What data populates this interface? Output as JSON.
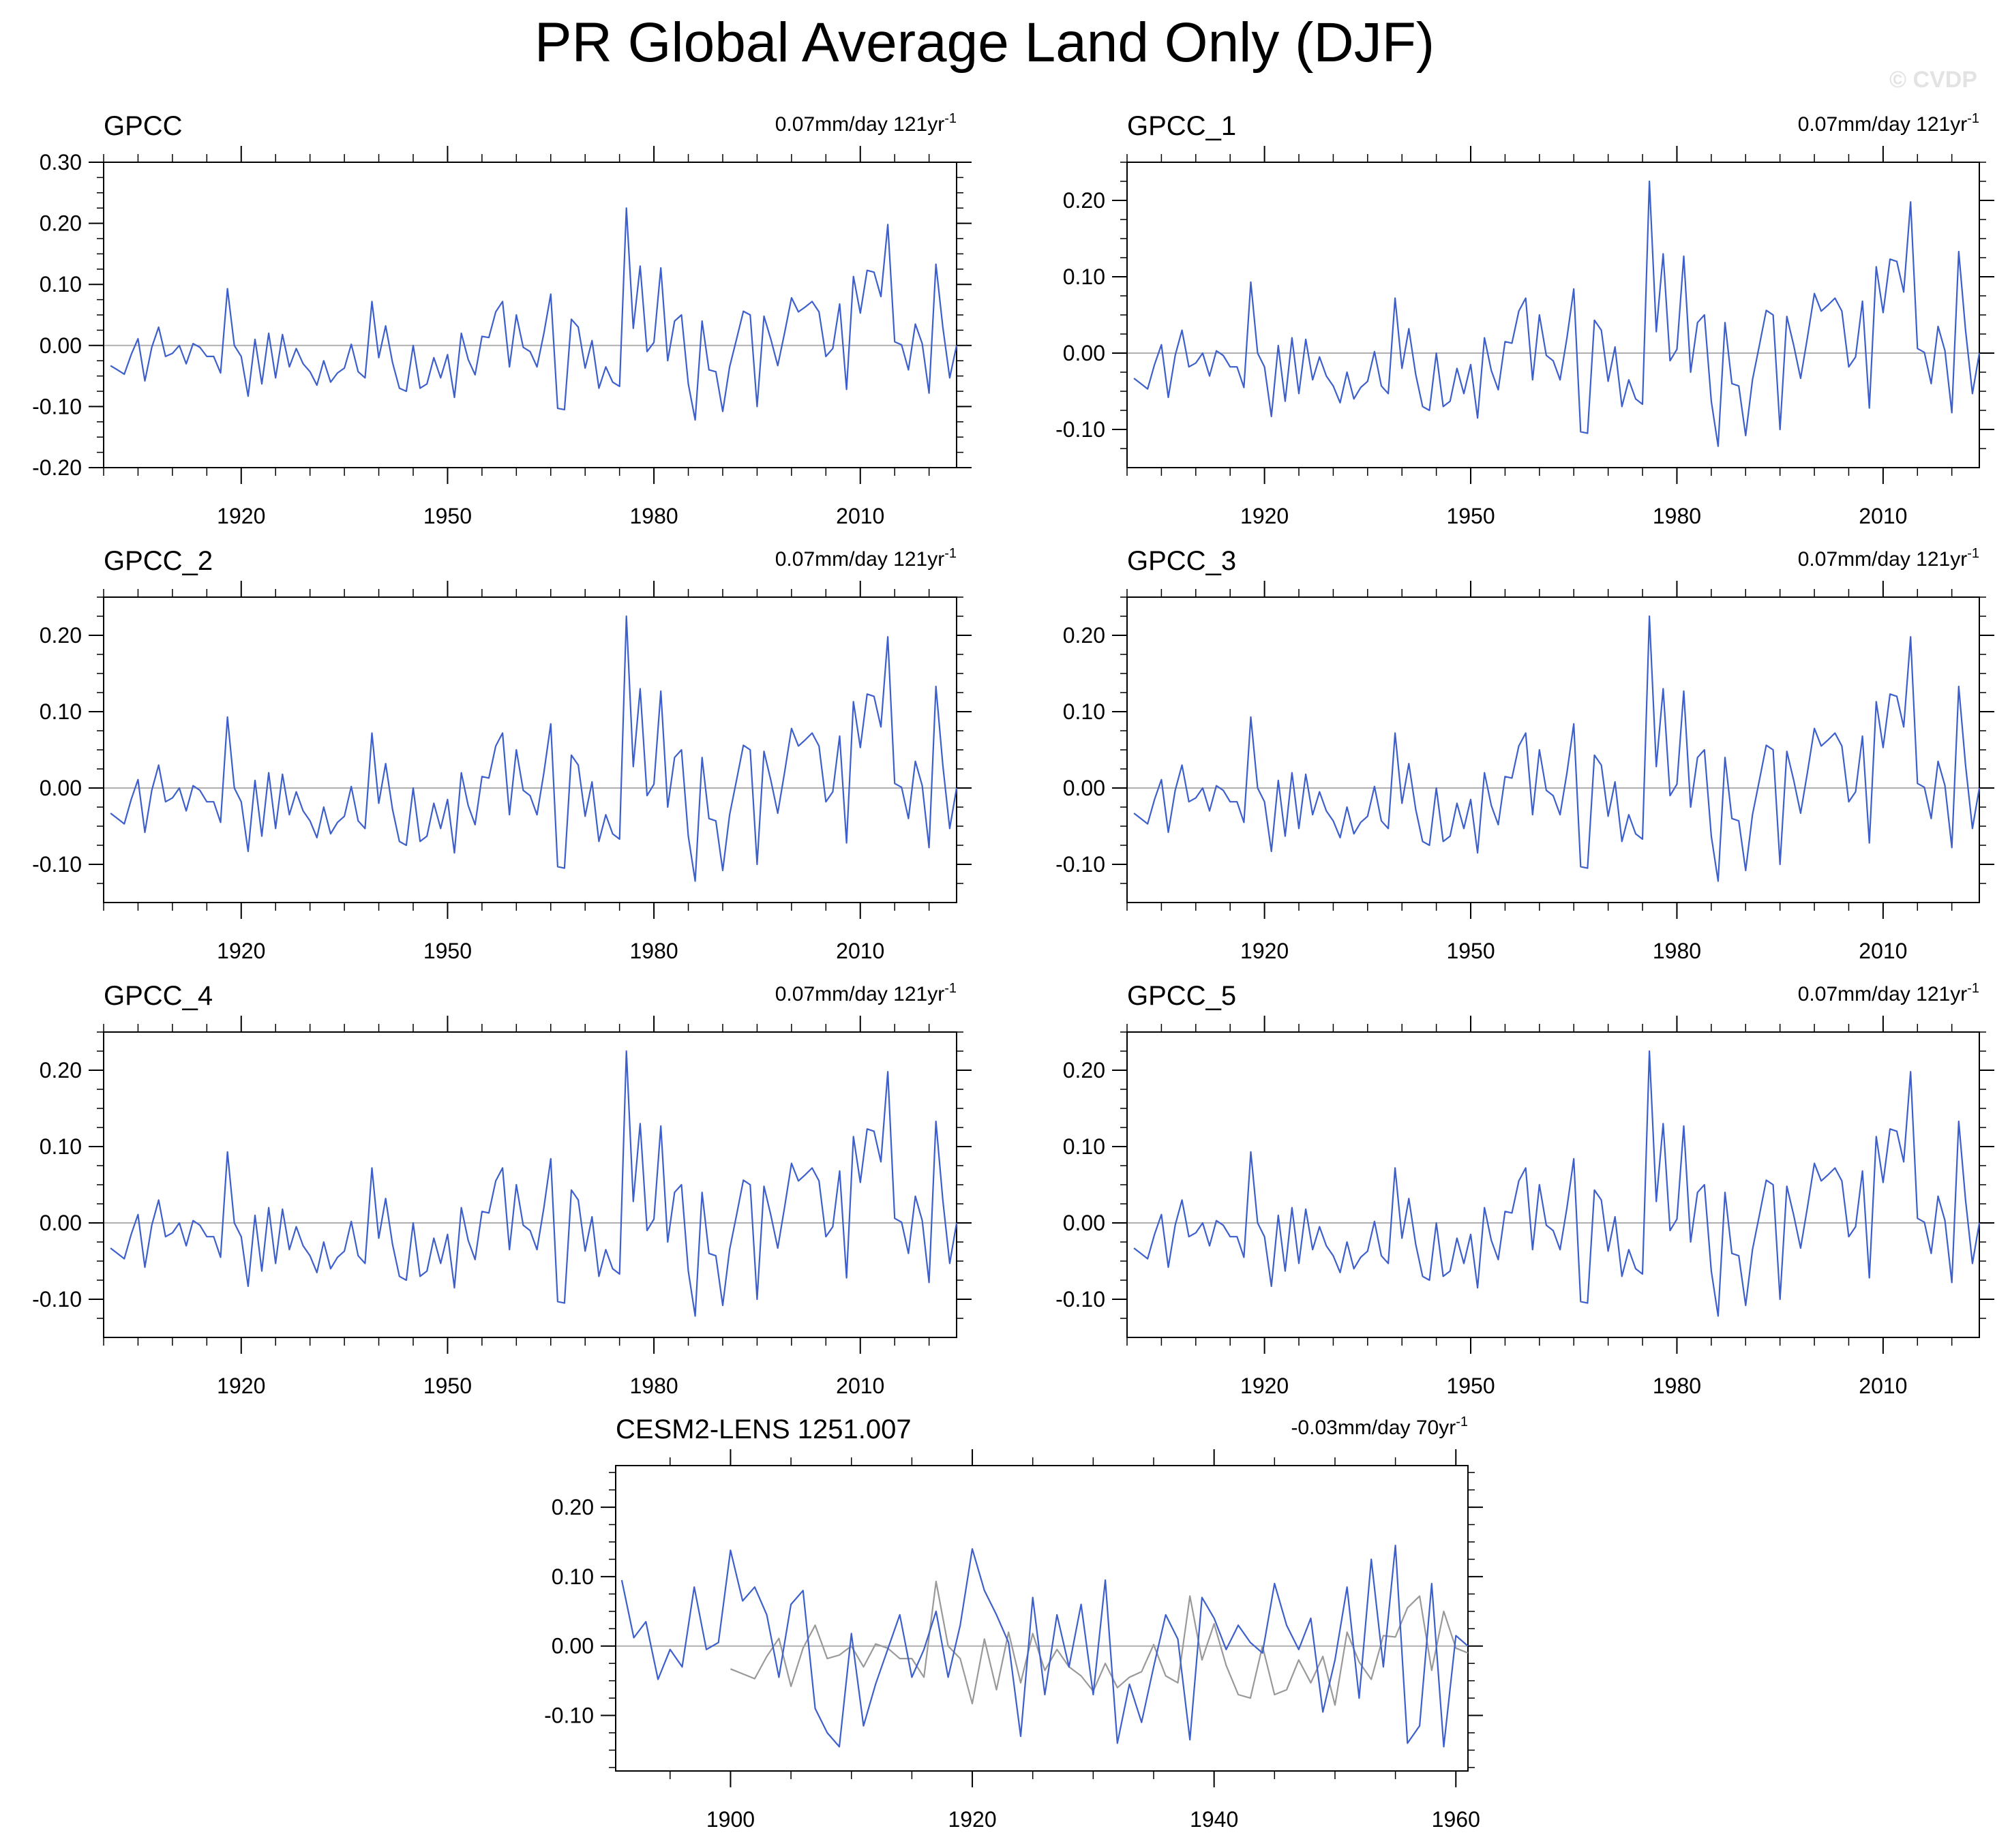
{
  "figure": {
    "title": "PR Global Average Land Only (DJF)",
    "watermark": "© CVDP",
    "colors": {
      "observed": "#3c5fcc",
      "model_ref": "#999999",
      "zero_line": "#b0b0b0",
      "axes": "#000000"
    }
  },
  "chart_data": [
    {
      "type": "line",
      "panel": 0,
      "title": "GPCC",
      "trend_value": "0.07mm/day 121yr",
      "trend_exp": "-1",
      "xlim": [
        1900,
        2024
      ],
      "ylim": [
        -0.2,
        0.3
      ],
      "yticks": [
        -0.2,
        -0.1,
        0.0,
        0.1,
        0.2,
        0.3
      ],
      "ytick_labels": [
        "-0.20",
        "-0.10",
        "0.00",
        "0.10",
        "0.20",
        "0.30"
      ],
      "yminor": 0.025,
      "xticks": [
        1920,
        1950,
        1980,
        2010
      ],
      "xtick_labels": [
        "1920",
        "1950",
        "1980",
        "2010"
      ],
      "xminor": 5,
      "series": [
        {
          "color": "#3c5fcc",
          "x_start": 1901,
          "ref": "gpcc"
        }
      ]
    },
    {
      "type": "line",
      "panel": 1,
      "title": "GPCC_1",
      "trend_value": "0.07mm/day 121yr",
      "trend_exp": "-1",
      "xlim": [
        1900,
        2024
      ],
      "ylim": [
        -0.15,
        0.25
      ],
      "yticks": [
        -0.1,
        0.0,
        0.1,
        0.2
      ],
      "ytick_labels": [
        "-0.10",
        "0.00",
        "0.10",
        "0.20"
      ],
      "yminor": 0.025,
      "xticks": [
        1920,
        1950,
        1980,
        2010
      ],
      "xtick_labels": [
        "1920",
        "1950",
        "1980",
        "2010"
      ],
      "xminor": 5,
      "series": [
        {
          "color": "#3c5fcc",
          "x_start": 1901,
          "ref": "gpcc"
        }
      ]
    },
    {
      "type": "line",
      "panel": 2,
      "title": "GPCC_2",
      "trend_value": "0.07mm/day 121yr",
      "trend_exp": "-1",
      "xlim": [
        1900,
        2024
      ],
      "ylim": [
        -0.15,
        0.25
      ],
      "yticks": [
        -0.1,
        0.0,
        0.1,
        0.2
      ],
      "ytick_labels": [
        "-0.10",
        "0.00",
        "0.10",
        "0.20"
      ],
      "yminor": 0.025,
      "xticks": [
        1920,
        1950,
        1980,
        2010
      ],
      "xtick_labels": [
        "1920",
        "1950",
        "1980",
        "2010"
      ],
      "xminor": 5,
      "series": [
        {
          "color": "#3c5fcc",
          "x_start": 1901,
          "ref": "gpcc"
        }
      ]
    },
    {
      "type": "line",
      "panel": 3,
      "title": "GPCC_3",
      "trend_value": "0.07mm/day 121yr",
      "trend_exp": "-1",
      "xlim": [
        1900,
        2024
      ],
      "ylim": [
        -0.15,
        0.25
      ],
      "yticks": [
        -0.1,
        0.0,
        0.1,
        0.2
      ],
      "ytick_labels": [
        "-0.10",
        "0.00",
        "0.10",
        "0.20"
      ],
      "yminor": 0.025,
      "xticks": [
        1920,
        1950,
        1980,
        2010
      ],
      "xtick_labels": [
        "1920",
        "1950",
        "1980",
        "2010"
      ],
      "xminor": 5,
      "series": [
        {
          "color": "#3c5fcc",
          "x_start": 1901,
          "ref": "gpcc"
        }
      ]
    },
    {
      "type": "line",
      "panel": 4,
      "title": "GPCC_4",
      "trend_value": "0.07mm/day 121yr",
      "trend_exp": "-1",
      "xlim": [
        1900,
        2024
      ],
      "ylim": [
        -0.15,
        0.25
      ],
      "yticks": [
        -0.1,
        0.0,
        0.1,
        0.2
      ],
      "ytick_labels": [
        "-0.10",
        "0.00",
        "0.10",
        "0.20"
      ],
      "yminor": 0.025,
      "xticks": [
        1920,
        1950,
        1980,
        2010
      ],
      "xtick_labels": [
        "1920",
        "1950",
        "1980",
        "2010"
      ],
      "xminor": 5,
      "series": [
        {
          "color": "#3c5fcc",
          "x_start": 1901,
          "ref": "gpcc"
        }
      ]
    },
    {
      "type": "line",
      "panel": 5,
      "title": "GPCC_5",
      "trend_value": "0.07mm/day 121yr",
      "trend_exp": "-1",
      "xlim": [
        1900,
        2024
      ],
      "ylim": [
        -0.15,
        0.25
      ],
      "yticks": [
        -0.1,
        0.0,
        0.1,
        0.2
      ],
      "ytick_labels": [
        "-0.10",
        "0.00",
        "0.10",
        "0.20"
      ],
      "yminor": 0.025,
      "xticks": [
        1920,
        1950,
        1980,
        2010
      ],
      "xtick_labels": [
        "1920",
        "1950",
        "1980",
        "2010"
      ],
      "xminor": 5,
      "series": [
        {
          "color": "#3c5fcc",
          "x_start": 1901,
          "ref": "gpcc"
        }
      ]
    },
    {
      "type": "line",
      "panel": 6,
      "title": "CESM2-LENS 1251.007",
      "trend_value": "-0.03mm/day 70yr",
      "trend_exp": "-1",
      "xlim": [
        1890.5,
        1961
      ],
      "ylim": [
        -0.18,
        0.26
      ],
      "yticks": [
        -0.1,
        0.0,
        0.1,
        0.2
      ],
      "ytick_labels": [
        "-0.10",
        "0.00",
        "0.10",
        "0.20"
      ],
      "yminor": 0.025,
      "xticks": [
        1900,
        1920,
        1940,
        1960
      ],
      "xtick_labels": [
        "1900",
        "1920",
        "1940",
        "1960"
      ],
      "xminor": 5,
      "series": [
        {
          "color": "#3c5fcc",
          "x_start": 1891,
          "values": [
            0.095,
            0.012,
            0.035,
            -0.048,
            -0.005,
            -0.03,
            0.085,
            -0.005,
            0.005,
            0.138,
            0.065,
            0.085,
            0.045,
            -0.045,
            0.06,
            0.08,
            -0.09,
            -0.125,
            -0.145,
            0.018,
            -0.115,
            -0.055,
            -0.005,
            0.045,
            -0.045,
            -0.005,
            0.05,
            -0.045,
            0.03,
            0.14,
            0.08,
            0.045,
            0.005,
            -0.13,
            0.07,
            -0.07,
            0.045,
            -0.03,
            0.06,
            -0.07,
            0.095,
            -0.14,
            -0.055,
            -0.11,
            -0.03,
            0.045,
            0.01,
            -0.135,
            0.07,
            0.04,
            -0.005,
            0.03,
            0.005,
            -0.01,
            0.09,
            0.03,
            -0.005,
            0.04,
            -0.095,
            -0.02,
            0.085,
            -0.075,
            0.125,
            -0.03,
            0.145,
            -0.14,
            -0.115,
            0.09,
            -0.145,
            0.015,
            0.0
          ]
        },
        {
          "color": "#999999",
          "x_start": 1900,
          "ref": "gpcc"
        }
      ]
    }
  ],
  "gpcc_values": [
    -0.033,
    -0.04,
    -0.047,
    -0.015,
    0.011,
    -0.058,
    -0.003,
    0.03,
    -0.018,
    -0.013,
    -0.0,
    -0.03,
    0.003,
    -0.003,
    -0.018,
    -0.018,
    -0.045,
    0.093,
    -0.0,
    -0.018,
    -0.083,
    0.01,
    -0.063,
    0.02,
    -0.053,
    0.018,
    -0.035,
    -0.005,
    -0.03,
    -0.043,
    -0.065,
    -0.025,
    -0.06,
    -0.045,
    -0.037,
    0.002,
    -0.043,
    -0.053,
    0.072,
    -0.02,
    0.032,
    -0.028,
    -0.07,
    -0.075,
    -0.0,
    -0.07,
    -0.063,
    -0.02,
    -0.053,
    -0.015,
    -0.085,
    0.02,
    -0.023,
    -0.048,
    0.015,
    0.013,
    0.055,
    0.072,
    -0.035,
    0.05,
    -0.003,
    -0.01,
    -0.035,
    0.02,
    0.084,
    -0.103,
    -0.105,
    0.043,
    0.03,
    -0.037,
    0.008,
    -0.07,
    -0.035,
    -0.06,
    -0.067,
    0.225,
    0.028,
    0.13,
    -0.01,
    0.005,
    0.127,
    -0.025,
    0.04,
    0.05,
    -0.063,
    -0.122,
    0.04,
    -0.04,
    -0.043,
    -0.108,
    -0.035,
    0.01,
    0.056,
    0.05,
    -0.1,
    0.048,
    0.01,
    -0.033,
    0.021,
    0.078,
    0.055,
    0.063,
    0.072,
    0.055,
    -0.018,
    -0.005,
    0.068,
    -0.072,
    0.113,
    0.053,
    0.123,
    0.12,
    0.08,
    0.198,
    0.006,
    0.001,
    -0.04,
    0.035,
    0.003,
    -0.078,
    0.133,
    0.03,
    -0.053,
    0.0
  ]
}
